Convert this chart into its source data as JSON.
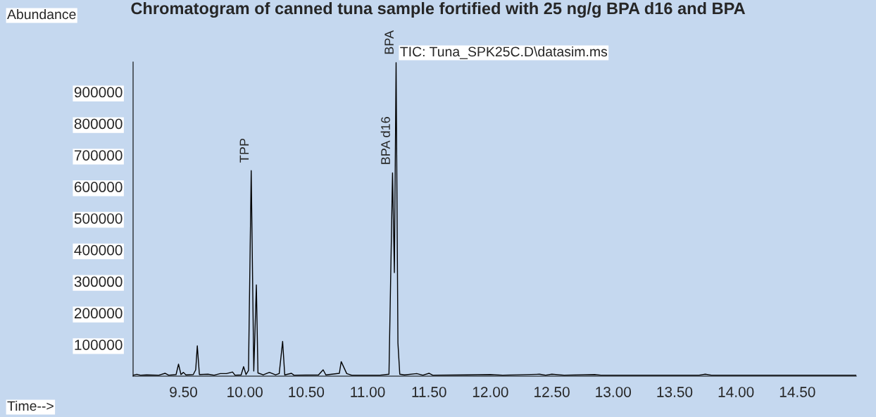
{
  "chart_data": {
    "type": "line",
    "title": "Chromatogram of canned tuna sample fortified with 25 ng/g BPA d16 and BPA",
    "xlabel": "Time-->",
    "ylabel": "Abundance",
    "annotations": [
      "TIC: Tuna_SPK25C.D\\datasim.ms",
      {
        "text": "TPP",
        "x": 10.052,
        "y": 651000
      },
      {
        "text": "BPA d16",
        "x": 11.203,
        "y": 644000
      },
      {
        "text": "BPA",
        "x": 11.232,
        "y": 993000
      }
    ],
    "series": [
      {
        "color": "#000000",
        "x": [
          9.09,
          9.12,
          9.15,
          9.2,
          9.3,
          9.35,
          9.38,
          9.44,
          9.46,
          9.48,
          9.5,
          9.52,
          9.58,
          9.6,
          9.613,
          9.63,
          9.7,
          9.75,
          9.8,
          9.85,
          9.9,
          9.92,
          9.97,
          9.99,
          10.01,
          10.03,
          10.052,
          10.073,
          10.094,
          10.107,
          10.15,
          10.2,
          10.25,
          10.28,
          10.308,
          10.325,
          10.38,
          10.4,
          10.6,
          10.638,
          10.66,
          10.77,
          10.785,
          10.83,
          10.87,
          11.1,
          11.174,
          11.203,
          11.218,
          11.232,
          11.247,
          11.262,
          11.3,
          11.4,
          11.45,
          11.5,
          11.53,
          11.8,
          12.0,
          12.1,
          12.4,
          12.45,
          12.5,
          12.6,
          12.85,
          12.9,
          13.7,
          13.75,
          13.8,
          14.98
        ],
        "values": [
          3000,
          6000,
          3000,
          4000,
          3000,
          9000,
          3000,
          5000,
          38000,
          5000,
          12000,
          4000,
          5000,
          20000,
          96000,
          5000,
          6000,
          3000,
          8000,
          8000,
          13000,
          3000,
          4000,
          30000,
          5000,
          18000,
          651000,
          16000,
          289000,
          10000,
          4000,
          12000,
          4000,
          8000,
          110000,
          4000,
          9000,
          3000,
          4000,
          20000,
          4000,
          9000,
          46000,
          8000,
          3000,
          3000,
          6000,
          644000,
          328000,
          993000,
          105000,
          6000,
          4000,
          8000,
          3000,
          9000,
          3000,
          4000,
          5000,
          3000,
          6000,
          3000,
          6000,
          3000,
          5000,
          3000,
          3000,
          6000,
          3000,
          3000
        ]
      }
    ],
    "xlim": [
      9.09,
      14.98
    ],
    "ylim": [
      0,
      995000
    ],
    "xticks": [
      {
        "value": 9.5,
        "label": "9.50"
      },
      {
        "value": 10,
        "label": "10.00"
      },
      {
        "value": 10.5,
        "label": "10.50"
      },
      {
        "value": 11,
        "label": "11.00"
      },
      {
        "value": 11.5,
        "label": "11.50"
      },
      {
        "value": 12,
        "label": "12.00"
      },
      {
        "value": 12.5,
        "label": "12.50"
      },
      {
        "value": 13,
        "label": "13.00"
      },
      {
        "value": 13.5,
        "label": "13.50"
      },
      {
        "value": 14,
        "label": "14.00"
      },
      {
        "value": 14.5,
        "label": "14.50"
      }
    ],
    "yticks": [
      100000,
      200000,
      300000,
      400000,
      500000,
      600000,
      700000,
      800000,
      900000
    ],
    "grid": false,
    "legend": false,
    "marker": "none",
    "line_style": "solid"
  }
}
